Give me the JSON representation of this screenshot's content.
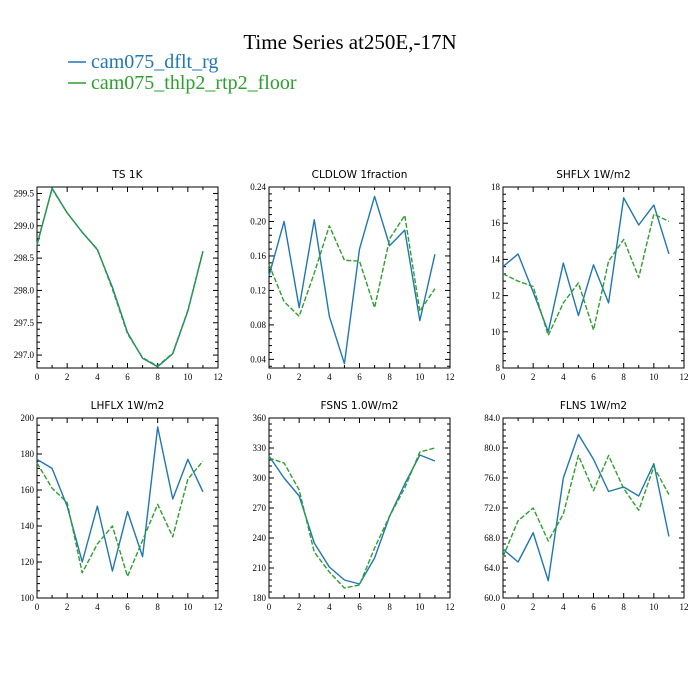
{
  "figure": {
    "title": "Time Series at250E,-17N",
    "legend": [
      {
        "label": "cam075_dflt_rg",
        "color": "#1f77b4",
        "dash": "solid"
      },
      {
        "label": "cam075_thlp2_rtp2_floor",
        "color": "#2ca02c",
        "dash": "dashed"
      }
    ]
  },
  "chart_data": [
    {
      "type": "line",
      "title": "TS   1K",
      "x": [
        0,
        1,
        2,
        3,
        4,
        5,
        6,
        7,
        8,
        9,
        10,
        11
      ],
      "xlim": [
        0,
        12
      ],
      "xticks": [
        0,
        2,
        4,
        6,
        8,
        10,
        12
      ],
      "xtick_labels": [
        "0",
        "2",
        "4",
        "6",
        "8",
        "10",
        "12"
      ],
      "ylim": [
        296.8,
        299.6
      ],
      "yticks": [
        297.0,
        297.5,
        298.0,
        298.5,
        299.0,
        299.5
      ],
      "ytick_labels": [
        "297.0",
        "297.5",
        "298.0",
        "298.5",
        "299.0",
        "299.5"
      ],
      "series": [
        {
          "name": "cam075_dflt_rg",
          "values": [
            298.7,
            299.58,
            299.2,
            298.9,
            298.63,
            298.05,
            297.35,
            296.95,
            296.82,
            297.02,
            297.68,
            298.6
          ]
        },
        {
          "name": "cam075_thlp2_rtp2_floor",
          "values": [
            298.72,
            299.57,
            299.2,
            298.9,
            298.64,
            298.02,
            297.33,
            296.96,
            296.83,
            297.03,
            297.69,
            298.61
          ]
        }
      ]
    },
    {
      "type": "line",
      "title": "CLDLOW   1fraction",
      "x": [
        0,
        1,
        2,
        3,
        4,
        5,
        6,
        7,
        8,
        9,
        10,
        11
      ],
      "xlim": [
        0,
        12
      ],
      "xticks": [
        0,
        2,
        4,
        6,
        8,
        10,
        12
      ],
      "xtick_labels": [
        "0",
        "2",
        "4",
        "6",
        "8",
        "10",
        "12"
      ],
      "ylim": [
        0.03,
        0.24
      ],
      "yticks": [
        0.04,
        0.08,
        0.12,
        0.16,
        0.2,
        0.24
      ],
      "ytick_labels": [
        "0.04",
        "0.08",
        "0.12",
        "0.16",
        "0.20",
        "0.24"
      ],
      "series": [
        {
          "name": "cam075_dflt_rg",
          "values": [
            0.137,
            0.2,
            0.1,
            0.202,
            0.09,
            0.035,
            0.168,
            0.229,
            0.172,
            0.19,
            0.085,
            0.162
          ]
        },
        {
          "name": "cam075_thlp2_rtp2_floor",
          "values": [
            0.15,
            0.107,
            0.09,
            0.14,
            0.195,
            0.155,
            0.154,
            0.1,
            0.18,
            0.207,
            0.096,
            0.122
          ]
        }
      ]
    },
    {
      "type": "line",
      "title": "SHFLX   1W/m2",
      "x": [
        0,
        1,
        2,
        3,
        4,
        5,
        6,
        7,
        8,
        9,
        10,
        11
      ],
      "xlim": [
        0,
        12
      ],
      "xticks": [
        0,
        2,
        4,
        6,
        8,
        10,
        12
      ],
      "xtick_labels": [
        "0",
        "2",
        "4",
        "6",
        "8",
        "10",
        "12"
      ],
      "ylim": [
        8,
        18
      ],
      "yticks": [
        8,
        10,
        12,
        14,
        16,
        18
      ],
      "ytick_labels": [
        "8",
        "10",
        "12",
        "14",
        "16",
        "18"
      ],
      "series": [
        {
          "name": "cam075_dflt_rg",
          "values": [
            13.6,
            14.3,
            12.2,
            10.0,
            13.8,
            10.9,
            13.7,
            11.6,
            17.4,
            15.9,
            17.0,
            14.3
          ]
        },
        {
          "name": "cam075_thlp2_rtp2_floor",
          "values": [
            13.2,
            12.8,
            12.5,
            9.8,
            11.6,
            12.7,
            10.1,
            13.9,
            15.1,
            13.0,
            16.5,
            16.1
          ]
        }
      ]
    },
    {
      "type": "line",
      "title": "LHFLX   1W/m2",
      "x": [
        0,
        1,
        2,
        3,
        4,
        5,
        6,
        7,
        8,
        9,
        10,
        11
      ],
      "xlim": [
        0,
        12
      ],
      "xticks": [
        0,
        2,
        4,
        6,
        8,
        10,
        12
      ],
      "xtick_labels": [
        "0",
        "2",
        "4",
        "6",
        "8",
        "10",
        "12"
      ],
      "ylim": [
        100,
        200
      ],
      "yticks": [
        100,
        120,
        140,
        160,
        180,
        200
      ],
      "ytick_labels": [
        "100",
        "120",
        "140",
        "160",
        "180",
        "200"
      ],
      "series": [
        {
          "name": "cam075_dflt_rg",
          "values": [
            177,
            172,
            151,
            120,
            151,
            115,
            148,
            123,
            195,
            155,
            177,
            159
          ]
        },
        {
          "name": "cam075_thlp2_rtp2_floor",
          "values": [
            175,
            161,
            153,
            114,
            130,
            140,
            112,
            132,
            152,
            134,
            166,
            176
          ]
        }
      ]
    },
    {
      "type": "line",
      "title": "FSNS   1.0W/m2",
      "x": [
        0,
        1,
        2,
        3,
        4,
        5,
        6,
        7,
        8,
        9,
        10,
        11
      ],
      "xlim": [
        0,
        12
      ],
      "xticks": [
        0,
        2,
        4,
        6,
        8,
        10,
        12
      ],
      "xtick_labels": [
        "0",
        "2",
        "4",
        "6",
        "8",
        "10",
        "12"
      ],
      "ylim": [
        180,
        360
      ],
      "yticks": [
        180,
        210,
        240,
        270,
        300,
        330,
        360
      ],
      "ytick_labels": [
        "180",
        "210",
        "240",
        "270",
        "300",
        "330",
        "360"
      ],
      "series": [
        {
          "name": "cam075_dflt_rg",
          "values": [
            322,
            300,
            282,
            235,
            211,
            198,
            194,
            220,
            262,
            294,
            323,
            317
          ]
        },
        {
          "name": "cam075_thlp2_rtp2_floor",
          "values": [
            320,
            315,
            288,
            226,
            206,
            190,
            193,
            230,
            262,
            290,
            326,
            330
          ]
        }
      ]
    },
    {
      "type": "line",
      "title": "FLNS   1W/m2",
      "x": [
        0,
        1,
        2,
        3,
        4,
        5,
        6,
        7,
        8,
        9,
        10,
        11
      ],
      "xlim": [
        0,
        12
      ],
      "xticks": [
        0,
        2,
        4,
        6,
        8,
        10,
        12
      ],
      "xtick_labels": [
        "0",
        "2",
        "4",
        "6",
        "8",
        "10",
        "12"
      ],
      "ylim": [
        60,
        84
      ],
      "yticks": [
        60,
        64,
        68,
        72,
        76,
        80,
        84
      ],
      "ytick_labels": [
        "60.0",
        "64.0",
        "68.0",
        "72.0",
        "76.0",
        "80.0",
        "84.0"
      ],
      "series": [
        {
          "name": "cam075_dflt_rg",
          "values": [
            66.5,
            64.8,
            68.7,
            62.3,
            76.0,
            81.8,
            78.5,
            74.2,
            74.8,
            73.6,
            77.9,
            68.2
          ]
        },
        {
          "name": "cam075_thlp2_rtp2_floor",
          "values": [
            65.5,
            70.3,
            72.0,
            67.6,
            71.2,
            79.0,
            74.3,
            79.0,
            74.6,
            71.7,
            77.5,
            73.8
          ]
        }
      ]
    }
  ]
}
